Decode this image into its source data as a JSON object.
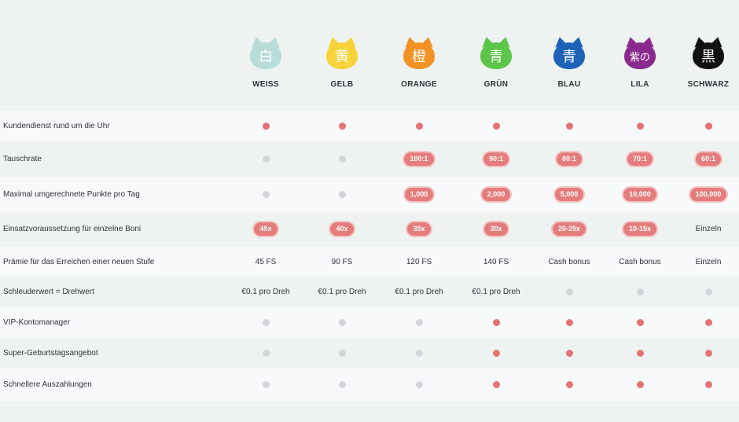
{
  "tiers": [
    {
      "name": "WEISS",
      "glyph": "白",
      "color": "#b7dcd9",
      "text_color": "#ffffff"
    },
    {
      "name": "GELB",
      "glyph": "黄",
      "color": "#f7d33a",
      "text_color": "#ffffff"
    },
    {
      "name": "ORANGE",
      "glyph": "橙",
      "color": "#f39224",
      "text_color": "#ffffff"
    },
    {
      "name": "GRÜN",
      "glyph": "青",
      "color": "#5cc54a",
      "text_color": "#ffffff"
    },
    {
      "name": "BLAU",
      "glyph": "青",
      "color": "#1f63b8",
      "text_color": "#ffffff"
    },
    {
      "name": "LILA",
      "glyph": "紫の",
      "color": "#8b2a8e",
      "text_color": "#ffffff"
    },
    {
      "name": "SCHWARZ",
      "glyph": "黒",
      "color": "#111111",
      "text_color": "#ffffff"
    }
  ],
  "rows": [
    {
      "label": "Kundendienst rund um die Uhr",
      "cells": [
        {
          "type": "dot",
          "on": true
        },
        {
          "type": "dot",
          "on": true
        },
        {
          "type": "dot",
          "on": true
        },
        {
          "type": "dot",
          "on": true
        },
        {
          "type": "dot",
          "on": true
        },
        {
          "type": "dot",
          "on": true
        },
        {
          "type": "dot",
          "on": true
        }
      ]
    },
    {
      "label": "Tauschrate",
      "cells": [
        {
          "type": "dot",
          "on": false
        },
        {
          "type": "dot",
          "on": false
        },
        {
          "type": "pill",
          "text": "100:1"
        },
        {
          "type": "pill",
          "text": "90:1"
        },
        {
          "type": "pill",
          "text": "80:1"
        },
        {
          "type": "pill",
          "text": "70:1"
        },
        {
          "type": "pill",
          "text": "60:1"
        }
      ]
    },
    {
      "label": "Maximal umgerechnete Punkte pro Tag",
      "cells": [
        {
          "type": "dot",
          "on": false
        },
        {
          "type": "dot",
          "on": false
        },
        {
          "type": "pill",
          "text": "1,000"
        },
        {
          "type": "pill",
          "text": "2,000"
        },
        {
          "type": "pill",
          "text": "5,000"
        },
        {
          "type": "pill",
          "text": "10,000"
        },
        {
          "type": "pill",
          "text": "100,000"
        }
      ]
    },
    {
      "label": "Einsatzvoraussetzung für einzelne Boni",
      "cells": [
        {
          "type": "pill",
          "text": "45x"
        },
        {
          "type": "pill",
          "text": "40x"
        },
        {
          "type": "pill",
          "text": "35x"
        },
        {
          "type": "pill",
          "text": "30x"
        },
        {
          "type": "pill",
          "text": "20-25x"
        },
        {
          "type": "pill",
          "text": "10-15x"
        },
        {
          "type": "text",
          "text": "Einzeln"
        }
      ]
    },
    {
      "label": "Prämie für das Erreichen einer neuen Stufe",
      "cells": [
        {
          "type": "text",
          "text": "45 FS"
        },
        {
          "type": "text",
          "text": "90 FS"
        },
        {
          "type": "text",
          "text": "120 FS"
        },
        {
          "type": "text",
          "text": "140 FS"
        },
        {
          "type": "text",
          "text": "Cash bonus"
        },
        {
          "type": "text",
          "text": "Cash bonus"
        },
        {
          "type": "text",
          "text": "Einzeln"
        }
      ]
    },
    {
      "label": "Schleuderwert = Drehwert",
      "cells": [
        {
          "type": "text",
          "text": "€0.1 pro Dreh"
        },
        {
          "type": "text",
          "text": "€0.1 pro Dreh"
        },
        {
          "type": "text",
          "text": "€0.1 pro Dreh"
        },
        {
          "type": "text",
          "text": "€0.1 pro Dreh"
        },
        {
          "type": "dot",
          "on": false
        },
        {
          "type": "dot",
          "on": false
        },
        {
          "type": "dot",
          "on": false
        }
      ]
    },
    {
      "label": "VIP-Kontomanager",
      "cells": [
        {
          "type": "dot",
          "on": false
        },
        {
          "type": "dot",
          "on": false
        },
        {
          "type": "dot",
          "on": false
        },
        {
          "type": "dot",
          "on": true
        },
        {
          "type": "dot",
          "on": true
        },
        {
          "type": "dot",
          "on": true
        },
        {
          "type": "dot",
          "on": true
        }
      ]
    },
    {
      "label": "Super-Geburtstagsangebot",
      "cells": [
        {
          "type": "dot",
          "on": false
        },
        {
          "type": "dot",
          "on": false
        },
        {
          "type": "dot",
          "on": false
        },
        {
          "type": "dot",
          "on": true
        },
        {
          "type": "dot",
          "on": true
        },
        {
          "type": "dot",
          "on": true
        },
        {
          "type": "dot",
          "on": true
        }
      ]
    },
    {
      "label": "Schnellere Auszahlungen",
      "cells": [
        {
          "type": "dot",
          "on": false
        },
        {
          "type": "dot",
          "on": false
        },
        {
          "type": "dot",
          "on": false
        },
        {
          "type": "dot",
          "on": true
        },
        {
          "type": "dot",
          "on": true
        },
        {
          "type": "dot",
          "on": true
        },
        {
          "type": "dot",
          "on": true
        }
      ]
    }
  ]
}
